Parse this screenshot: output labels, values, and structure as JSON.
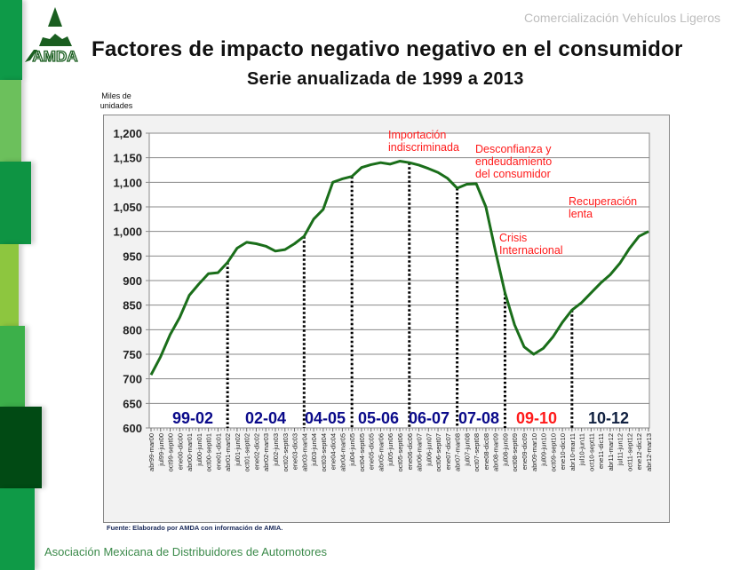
{
  "header": {
    "brand": "Comercialización Vehículos Ligeros",
    "logo_text": "AMDA"
  },
  "title": "Factores de impacto negativo negativo en el consumidor",
  "subtitle": "Serie anualizada de 1999 a 2013",
  "footer": {
    "source": "Fuente: Elaborado por AMDA con información de AMIA.",
    "organization": "Asociación Mexicana de Distribuidores de Automotores"
  },
  "colors": {
    "line": "#1a6e1a",
    "stripes": [
      "#0e9a48",
      "#6cc05c",
      "#0e9443",
      "#8dc63f",
      "#3cb04a",
      "#014a14",
      "#0f9a47"
    ],
    "annotation": "#ff1a1a",
    "period_blue": "#0a0a8a",
    "period_red": "#ff1a1a",
    "period_dark": "#102040"
  },
  "chart_data": {
    "type": "line",
    "title": "Serie anualizada de 1999 a 2013",
    "ylabel": "Miles de unidades",
    "xlabel": "",
    "ylim": [
      600,
      1200
    ],
    "yticks": [
      "600",
      "650",
      "700",
      "750",
      "800",
      "850",
      "900",
      "950",
      "1,000",
      "1,050",
      "1,100",
      "1,150",
      "1,200"
    ],
    "grid": true,
    "categories": [
      "abr99-mar00",
      "jul99-jun00",
      "oct99-sept00",
      "ene00-dic00",
      "abr00-mar01",
      "jul00-jun01",
      "oct00-sept01",
      "ene01-dic01",
      "abr01-mar02",
      "jul01-jun02",
      "oct01-sept02",
      "ene02-dic02",
      "abr02-mar03",
      "jul02-jun03",
      "oct02-sept03",
      "ene03-dic03",
      "abr03-mar04",
      "jul03-jun04",
      "oct03-sept04",
      "ene04-dic04",
      "abr04-mar05",
      "jul04-jun05",
      "oct04-sept05",
      "ene05-dic05",
      "abr05-mar06",
      "jul05-jun06",
      "oct05-sept06",
      "ene06-dic06",
      "abr06-mar07",
      "jul06-jun07",
      "oct06-sept07",
      "ene07-dic07",
      "abr07-mar08",
      "jul07-jun08",
      "oct07-sept08",
      "ene08-dic08",
      "abr08-mar09",
      "jul08-jun09",
      "oct08-sept09",
      "ene09-dic09",
      "abr09-mar10",
      "jul09-jun10",
      "oct09-sept10",
      "ene10-dic10",
      "abr10-mar11",
      "jul10-jun11",
      "oct10-sept11",
      "ene11-dic11",
      "abr11-mar12",
      "jul11-jun12",
      "oct11-sept12",
      "ene12-dic12",
      "abr12-mar13"
    ],
    "values": [
      708,
      745,
      790,
      825,
      870,
      893,
      914,
      916,
      937,
      966,
      978,
      975,
      970,
      960,
      963,
      975,
      990,
      1025,
      1045,
      1100,
      1107,
      1112,
      1130,
      1136,
      1140,
      1137,
      1143,
      1140,
      1135,
      1128,
      1120,
      1108,
      1088,
      1096,
      1097,
      1050,
      960,
      875,
      810,
      765,
      750,
      762,
      785,
      815,
      840,
      855,
      875,
      895,
      912,
      935,
      965,
      990,
      1000
    ],
    "period_dividers": [
      "abr01-mar02",
      "abr03-mar04",
      "jul04-jun05",
      "ene06-dic06",
      "abr07-mar08",
      "jul08-jun09",
      "abr10-mar11"
    ],
    "periods": [
      {
        "label": "99-02",
        "color": "#0a0a8a"
      },
      {
        "label": "02-04",
        "color": "#0a0a8a"
      },
      {
        "label": "04-05",
        "color": "#0a0a8a"
      },
      {
        "label": "05-06",
        "color": "#0a0a8a"
      },
      {
        "label": "06-07",
        "color": "#0a0a8a"
      },
      {
        "label": "07-08",
        "color": "#0a0a8a"
      },
      {
        "label": "09-10",
        "color": "#ff1a1a"
      },
      {
        "label": "10-12",
        "color": "#102040"
      }
    ],
    "annotations": [
      {
        "lines": [
          "Importación",
          "indiscriminada"
        ]
      },
      {
        "lines": [
          "Desconfianza y",
          "endeudamiento",
          "del consumidor"
        ]
      },
      {
        "lines": [
          "Crisis",
          "Internacional"
        ]
      },
      {
        "lines": [
          "Recuperación",
          "lenta"
        ]
      }
    ]
  }
}
